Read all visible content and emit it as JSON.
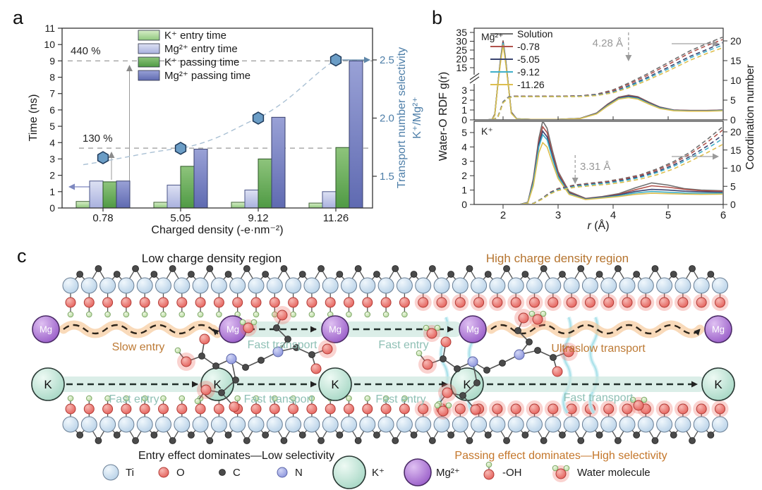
{
  "panel_a": {
    "label": "a",
    "ylabel": "Time (ns)",
    "xlabel": "Charged density (-e·nm⁻²)",
    "right_ylabel_line1": "Transport number selectivity",
    "right_ylabel_line2": "K⁺/Mg²⁺",
    "annotations": {
      "pct_440": "440 %",
      "pct_130": "130 %"
    },
    "chart_data": {
      "type": "bar+line",
      "categories": [
        "0.78",
        "5.05",
        "9.12",
        "11.26"
      ],
      "series": [
        {
          "name": "K⁺ entry time",
          "color_top": "#d8eec8",
          "color_bottom": "#8fc87d",
          "border": "#3f6136",
          "values": [
            0.4,
            0.35,
            0.35,
            0.3
          ]
        },
        {
          "name": "Mg²⁺ entry time",
          "color_top": "#dde1f3",
          "color_bottom": "#a9b1de",
          "border": "#4a5488",
          "values": [
            1.65,
            1.4,
            1.1,
            1.0
          ]
        },
        {
          "name": "K⁺ passing time",
          "color_top": "#8ec47c",
          "color_bottom": "#4f9a44",
          "border": "#2d5727",
          "values": [
            1.6,
            2.55,
            3.0,
            3.7
          ]
        },
        {
          "name": "Mg²⁺ passing time",
          "color_top": "#99a1d6",
          "color_bottom": "#5f6ab1",
          "border": "#39406e",
          "values": [
            1.65,
            3.6,
            5.55,
            9.0
          ]
        }
      ],
      "selectivity": {
        "name": "Transport number selectivity K⁺/Mg²⁺",
        "values": [
          1.66,
          1.74,
          2.0,
          2.5
        ],
        "marker_color": "#6b9dc6",
        "marker_border": "#1f3a5a",
        "line_color": "#a9c0d4"
      },
      "ylim": [
        0,
        11
      ],
      "yticks": [
        0,
        1,
        2,
        3,
        4,
        5,
        6,
        7,
        8,
        9,
        10,
        11
      ],
      "right_ylim": [
        1.23,
        2.77
      ],
      "right_yticks": [
        "1.5",
        "2.0",
        "2.5"
      ],
      "ref_lines": [
        {
          "y": 9.0,
          "label": "440 %"
        },
        {
          "y": 3.66,
          "label": "130 %"
        }
      ]
    }
  },
  "panel_b": {
    "label": "b",
    "ylabel_left": "Water-O RDF g(r)",
    "ylabel_right": "Coordination number",
    "xlabel_r": "r",
    "xlabel_unit": " (Å)",
    "subtitle_top": "Mg²⁺",
    "subtitle_bottom": "K⁺",
    "annotation_top": "4.28 Å",
    "annotation_bottom": "3.31 Å",
    "chart_data": {
      "type": "line",
      "xlim": [
        1.45,
        6
      ],
      "xticks": [
        2,
        3,
        4,
        5,
        6
      ],
      "subplots": [
        {
          "title": "Mg²⁺",
          "annotation": "4.28 Å",
          "annotation_x": 4.28,
          "left_ticks_lower": [
            0,
            1,
            2,
            3
          ],
          "left_ticks_upper": [
            15,
            20,
            25,
            30,
            35
          ],
          "axis_break": true,
          "right_ticks": [
            0,
            5,
            10,
            15,
            20
          ]
        },
        {
          "title": "K⁺",
          "annotation": "3.31 Å",
          "annotation_x": 3.31,
          "left_ticks": [
            0,
            1,
            2,
            3,
            4,
            5
          ],
          "right_ticks": [
            0,
            5,
            10,
            15,
            20
          ]
        }
      ],
      "mg_rdf_x": [
        1.7,
        1.8,
        1.85,
        1.9,
        1.95,
        2.0,
        2.05,
        2.1,
        2.15,
        2.25,
        2.5,
        3.0,
        3.4,
        3.7,
        3.9,
        4.1,
        4.28,
        4.45,
        4.65,
        4.85,
        5.1,
        5.4,
        5.7,
        6.0
      ],
      "mg_cn_x": [
        1.8,
        1.9,
        1.95,
        2.0,
        2.1,
        2.2,
        2.6,
        3.0,
        3.4,
        3.7,
        4.0,
        4.28,
        4.6,
        5.0,
        5.4,
        5.7,
        6.0
      ],
      "k_rdf_x": [
        2.3,
        2.45,
        2.55,
        2.65,
        2.72,
        2.8,
        2.9,
        3.0,
        3.2,
        3.5,
        3.8,
        4.1,
        4.4,
        4.7,
        5.0,
        5.3,
        5.6,
        6.0
      ],
      "k_cn_x": [
        2.4,
        2.55,
        2.7,
        2.85,
        3.0,
        3.31,
        3.6,
        3.9,
        4.2,
        4.5,
        4.8,
        5.1,
        5.4,
        5.7,
        6.0
      ],
      "series": [
        {
          "name": "Solution",
          "color": "#6f6f6f",
          "mg_rdf": [
            0,
            0.05,
            0.6,
            5,
            19,
            30.5,
            19,
            5,
            0.8,
            0.1,
            0.05,
            0.05,
            0.15,
            0.7,
            1.6,
            2.3,
            2.5,
            2.35,
            1.8,
            1.3,
            1.0,
            0.95,
            0.95,
            1.0
          ],
          "mg_cn": [
            0,
            0.6,
            2.5,
            4.6,
            5.8,
            6.0,
            6.0,
            6.0,
            6.1,
            6.5,
            7.6,
            9.3,
            11.5,
            14.5,
            17.5,
            19.3,
            21.0
          ],
          "k_rdf": [
            0,
            0.15,
            1.8,
            4.6,
            5.8,
            5.3,
            3.7,
            2.3,
            0.9,
            0.42,
            0.55,
            0.75,
            1.15,
            1.5,
            1.35,
            1.1,
            1.0,
            0.95
          ],
          "k_cn": [
            0,
            0.3,
            1.6,
            3.3,
            4.4,
            5.4,
            5.9,
            6.4,
            7.2,
            8.2,
            9.8,
            11.8,
            14.4,
            17.8,
            21.5
          ]
        },
        {
          "name": "-0.78",
          "color": "#b0524c",
          "mg_rdf": [
            0,
            0.05,
            0.55,
            4.8,
            18.5,
            30,
            18.5,
            4.8,
            0.75,
            0.1,
            0.05,
            0.05,
            0.15,
            0.68,
            1.55,
            2.25,
            2.45,
            2.3,
            1.75,
            1.28,
            1.0,
            0.95,
            0.95,
            1.0
          ],
          "mg_cn": [
            0,
            0.6,
            2.4,
            4.5,
            5.75,
            6.0,
            6.0,
            6.0,
            6.05,
            6.4,
            7.4,
            9.0,
            11.1,
            14.0,
            17.0,
            18.8,
            20.4
          ],
          "k_rdf": [
            0,
            0.14,
            1.7,
            4.4,
            5.4,
            5.0,
            3.5,
            2.2,
            0.85,
            0.4,
            0.52,
            0.7,
            1.02,
            1.3,
            1.2,
            1.05,
            0.95,
            0.92
          ],
          "k_cn": [
            0,
            0.28,
            1.55,
            3.2,
            4.3,
            5.25,
            5.75,
            6.25,
            7.0,
            8.0,
            9.5,
            11.4,
            13.9,
            17.0,
            20.6
          ]
        },
        {
          "name": "-5.05",
          "color": "#3a4470",
          "mg_rdf": [
            0,
            0.05,
            0.5,
            4.6,
            18,
            29.5,
            18,
            4.6,
            0.7,
            0.1,
            0.05,
            0.05,
            0.14,
            0.65,
            1.5,
            2.2,
            2.4,
            2.25,
            1.7,
            1.25,
            0.98,
            0.93,
            0.93,
            0.98
          ],
          "mg_cn": [
            0,
            0.55,
            2.35,
            4.45,
            5.7,
            5.95,
            5.95,
            5.95,
            6.0,
            6.3,
            7.1,
            8.6,
            10.6,
            13.3,
            16.1,
            17.8,
            19.6
          ],
          "k_rdf": [
            0,
            0.13,
            1.6,
            4.2,
            5.1,
            4.7,
            3.3,
            2.05,
            0.8,
            0.38,
            0.5,
            0.66,
            0.9,
            1.05,
            1.0,
            0.92,
            0.88,
            0.85
          ],
          "k_cn": [
            0,
            0.27,
            1.5,
            3.1,
            4.15,
            5.1,
            5.6,
            6.05,
            6.75,
            7.7,
            9.1,
            10.9,
            13.2,
            16.0,
            19.2
          ]
        },
        {
          "name": "-9.12",
          "color": "#3fafc9",
          "mg_rdf": [
            0,
            0.04,
            0.48,
            4.5,
            17.6,
            29,
            17.6,
            4.5,
            0.68,
            0.09,
            0.05,
            0.05,
            0.13,
            0.62,
            1.45,
            2.15,
            2.3,
            2.18,
            1.65,
            1.2,
            0.95,
            0.9,
            0.9,
            0.95
          ],
          "mg_cn": [
            0,
            0.55,
            2.3,
            4.4,
            5.65,
            5.9,
            5.9,
            5.9,
            5.95,
            6.25,
            7.0,
            8.4,
            10.3,
            12.9,
            15.7,
            17.4,
            19.0
          ],
          "k_rdf": [
            0,
            0.12,
            1.5,
            4.0,
            4.85,
            4.5,
            3.15,
            1.95,
            0.75,
            0.36,
            0.47,
            0.6,
            0.8,
            0.9,
            0.85,
            0.8,
            0.78,
            0.78
          ],
          "k_cn": [
            0,
            0.26,
            1.45,
            3.0,
            4.05,
            5.0,
            5.45,
            5.9,
            6.55,
            7.45,
            8.8,
            10.5,
            12.7,
            15.3,
            18.2
          ]
        },
        {
          "name": "-11.26",
          "color": "#ddbe4e",
          "mg_rdf": [
            0,
            0.04,
            0.45,
            4.3,
            17,
            28,
            17,
            4.3,
            0.65,
            0.08,
            0.05,
            0.05,
            0.12,
            0.6,
            1.4,
            2.1,
            2.25,
            2.1,
            1.6,
            1.15,
            0.92,
            0.88,
            0.88,
            0.92
          ],
          "mg_cn": [
            0,
            0.5,
            2.25,
            4.3,
            5.55,
            5.85,
            5.85,
            5.85,
            5.9,
            6.15,
            6.85,
            8.1,
            9.9,
            12.4,
            15.1,
            16.8,
            18.3
          ],
          "k_rdf": [
            0,
            0.1,
            1.3,
            3.6,
            4.3,
            4.0,
            2.85,
            1.8,
            0.7,
            0.34,
            0.44,
            0.55,
            0.7,
            0.78,
            0.75,
            0.72,
            0.7,
            0.72
          ],
          "k_cn": [
            0,
            0.24,
            1.35,
            2.85,
            3.85,
            4.75,
            5.15,
            5.55,
            6.15,
            7.0,
            8.2,
            9.8,
            11.9,
            14.2,
            16.6
          ]
        }
      ]
    }
  },
  "panel_c": {
    "label": "c",
    "region_low": "Low charge density region",
    "region_high": "High charge density region",
    "caption_low": "Entry effect dominates—Low selectivity",
    "caption_high": "Passing effect dominates—High selectivity",
    "mg_labels": [
      "Slow entry",
      "Fast transport",
      "Fast entry",
      "Ultraslow transport"
    ],
    "k_labels": [
      "Fast entry",
      "Fast transport",
      "Fast entry",
      "Fast transport"
    ],
    "ion_mg": "Mg",
    "ion_k": "K",
    "legend": [
      {
        "name": "Ti",
        "type": "ti"
      },
      {
        "name": "O",
        "type": "o"
      },
      {
        "name": "C",
        "type": "c"
      },
      {
        "name": "N",
        "type": "n"
      },
      {
        "name": "K⁺",
        "type": "k"
      },
      {
        "name": "Mg²⁺",
        "type": "mg"
      },
      {
        "name": "-OH",
        "type": "oh"
      },
      {
        "name": "Water molecule",
        "type": "water"
      }
    ],
    "colors": {
      "teal_text": "#8fc0b5",
      "orange_text": "#bd7a35",
      "caption_high": "#c4762a",
      "ti": "#c3d7ea",
      "o": "#e4625c",
      "c_atom": "#4a4a4a",
      "n": "#8d96dd",
      "k_ion": "#bfe3d4",
      "mg_ion": "#9a5fc9",
      "oh": "#b9dba0",
      "glow": "#f0786e",
      "water_channel": "#a6dfe9"
    }
  }
}
